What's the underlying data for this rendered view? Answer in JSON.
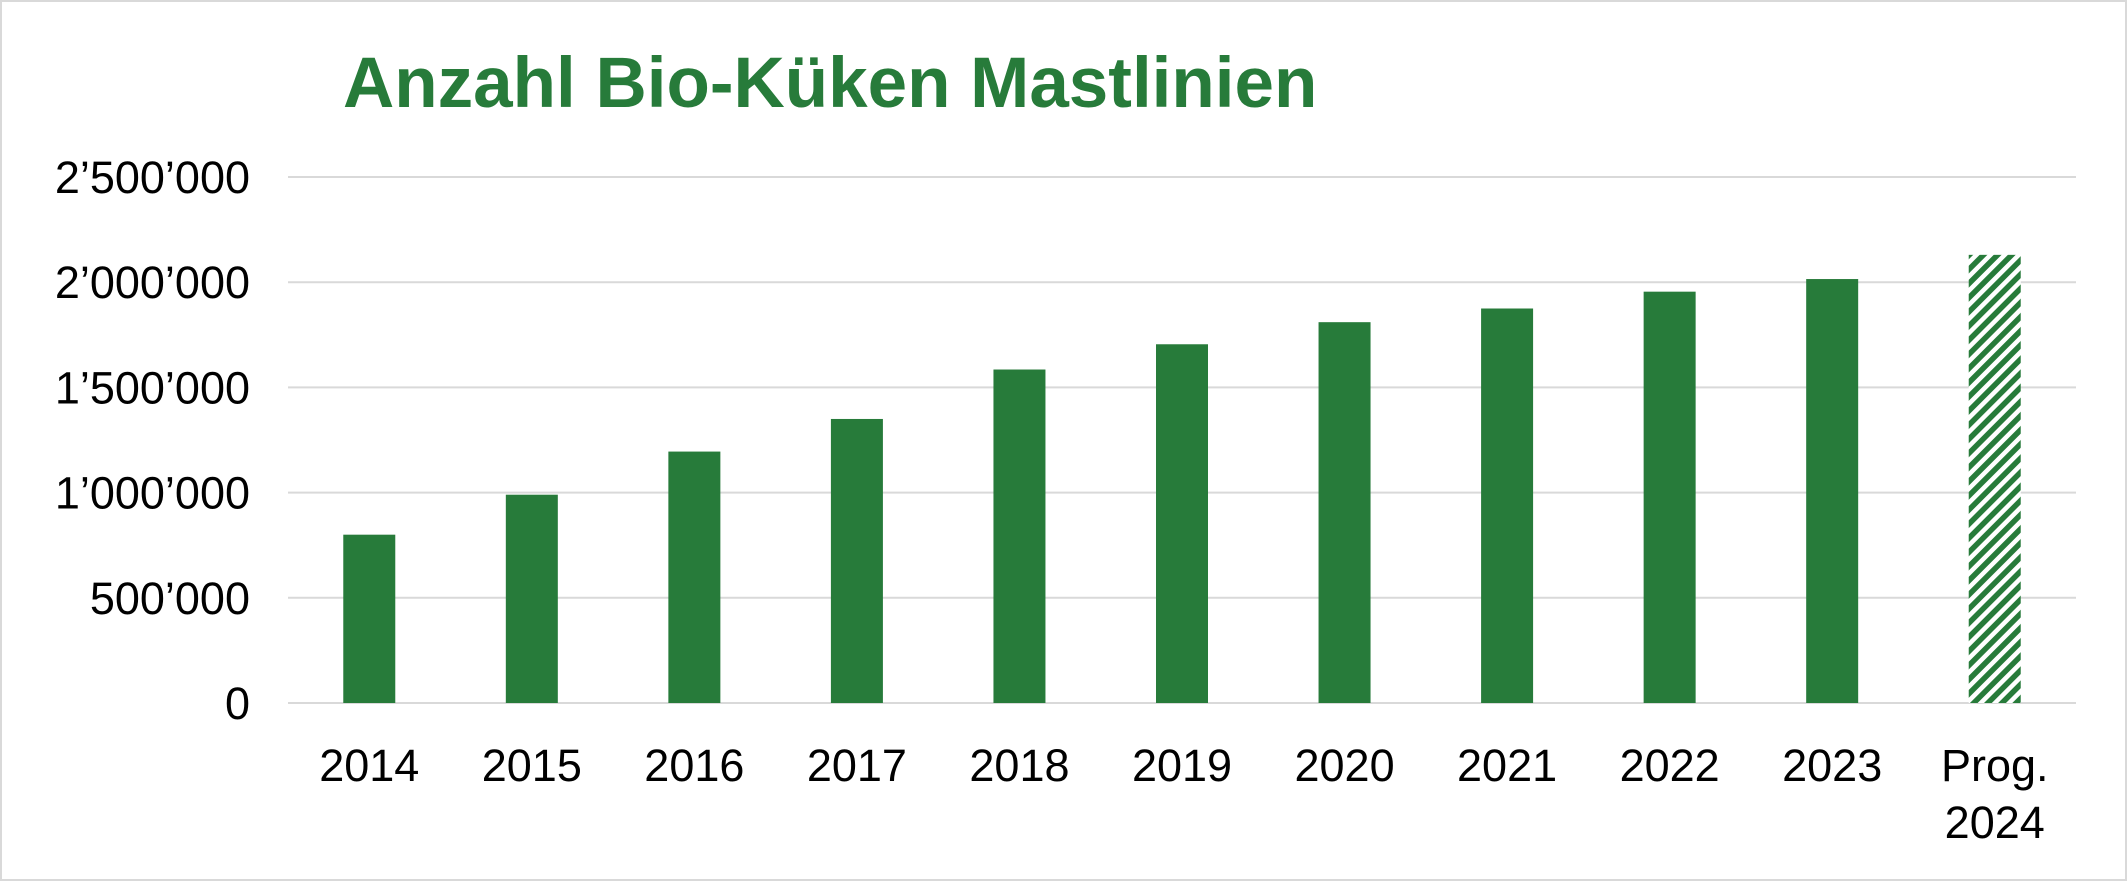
{
  "chart_data": {
    "type": "bar",
    "title": "Anzahl Bio-Küken Mastlinien",
    "xlabel": "",
    "ylabel": "",
    "categories": [
      [
        "2014"
      ],
      [
        "2015"
      ],
      [
        "2016"
      ],
      [
        "2017"
      ],
      [
        "2018"
      ],
      [
        "2019"
      ],
      [
        "2020"
      ],
      [
        "2021"
      ],
      [
        "2022"
      ],
      [
        "2023"
      ],
      [
        "Prog.",
        "2024"
      ]
    ],
    "values": [
      800000,
      990000,
      1195000,
      1350000,
      1585000,
      1705000,
      1810000,
      1875000,
      1955000,
      2015000,
      2130000
    ],
    "hatched": [
      false,
      false,
      false,
      false,
      false,
      false,
      false,
      false,
      false,
      false,
      true
    ],
    "ylim": [
      0,
      2500000
    ],
    "yticks": [
      0,
      500000,
      1000000,
      1500000,
      2000000,
      2500000
    ],
    "ytick_labels": [
      "0",
      "500’000",
      "1’000’000",
      "1’500’000",
      "2’000’000",
      "2’500’000"
    ],
    "grid": true,
    "legend": "none",
    "bar_color": "#277b3a",
    "grid_color": "#d9d9d9",
    "title_color": "#277b3a"
  }
}
